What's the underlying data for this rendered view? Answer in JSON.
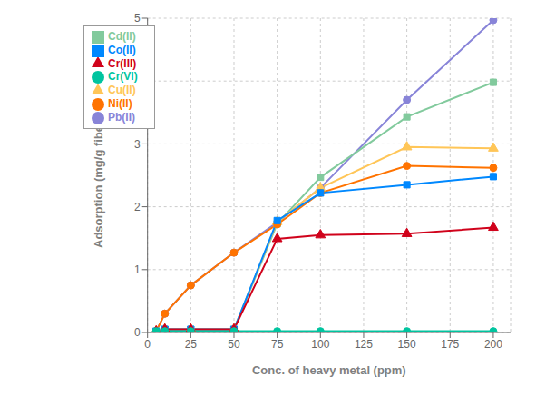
{
  "chart_data": {
    "type": "line",
    "xlabel": "Conc. of heavy metal (ppm)",
    "ylabel": "Adsorption (mg/g fiber)",
    "x": [
      5,
      10,
      25,
      50,
      75,
      100,
      150,
      200
    ],
    "series": [
      {
        "name": "Pb(II)",
        "values": [
          0.02,
          0.3,
          0.75,
          1.27,
          1.75,
          2.3,
          3.7,
          4.97
        ],
        "marker": "circle",
        "color": "#8884d8"
      },
      {
        "name": "Cd(II)",
        "values": [
          0.02,
          0.05,
          0.05,
          0.05,
          1.73,
          2.47,
          3.43,
          3.98
        ],
        "marker": "square",
        "color": "#82ca9d"
      },
      {
        "name": "Cu(II)",
        "values": [
          0.02,
          0.05,
          0.05,
          0.05,
          1.76,
          2.3,
          2.95,
          2.93
        ],
        "marker": "triangle",
        "color": "#ffc658"
      },
      {
        "name": "Ni(II)",
        "values": [
          0.02,
          0.3,
          0.75,
          1.27,
          1.72,
          2.22,
          2.65,
          2.62
        ],
        "marker": "circle",
        "color": "#ff7300"
      },
      {
        "name": "Co(II)",
        "values": [
          0.02,
          0.05,
          0.05,
          0.05,
          1.78,
          2.22,
          2.35,
          2.48
        ],
        "marker": "square",
        "color": "#0088fe"
      },
      {
        "name": "Cr(III)",
        "values": [
          0.02,
          0.05,
          0.05,
          0.05,
          1.49,
          1.55,
          1.57,
          1.67
        ],
        "marker": "triangle",
        "color": "#d0021b"
      },
      {
        "name": "Cr(VI)",
        "values": [
          0.02,
          0.02,
          0.02,
          0.02,
          0.02,
          0.02,
          0.02,
          0.02
        ],
        "marker": "circle",
        "color": "#00c49f"
      }
    ],
    "xlim": [
      0,
      210
    ],
    "ylim": [
      0,
      5
    ],
    "xticks": [
      0,
      25,
      50,
      75,
      100,
      125,
      150,
      175,
      200
    ],
    "yticks": [
      0,
      1,
      2,
      3,
      4,
      5
    ],
    "grid": true,
    "legend": "upper left"
  }
}
